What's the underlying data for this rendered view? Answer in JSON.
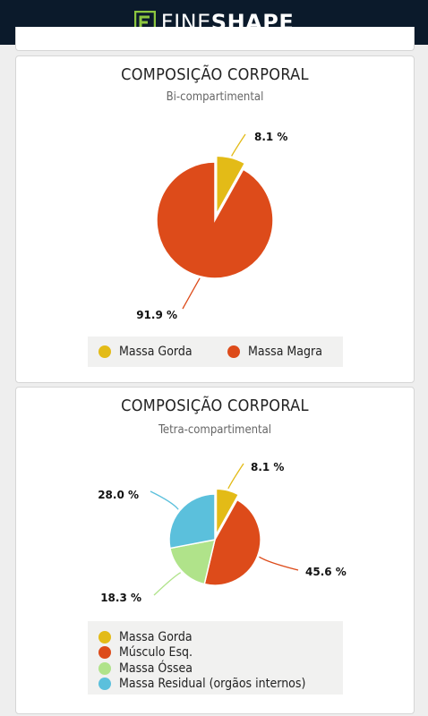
{
  "header": {
    "brand_light": "FINE",
    "brand_bold": "SHAPE",
    "icon": "fineshape-logo-icon"
  },
  "colors": {
    "massa_gorda": "#e3bb17",
    "massa_magra": "#dd4b1a",
    "musculo": "#dd4b1a",
    "ossea": "#b0e38a",
    "residual": "#5bc0dc"
  },
  "chart1": {
    "title": "COMPOSIÇÃO CORPORAL",
    "subtitle": "Bi-compartimental",
    "chart_data": {
      "type": "pie",
      "series": [
        {
          "name": "Massa Gorda",
          "value": 8.1,
          "label": "8.1 %"
        },
        {
          "name": "Massa Magra",
          "value": 91.9,
          "label": "91.9 %"
        }
      ],
      "exploded": "Massa Gorda",
      "legend_position": "bottom"
    },
    "legend": [
      "Massa Gorda",
      "Massa Magra"
    ]
  },
  "chart2": {
    "title": "COMPOSIÇÃO CORPORAL",
    "subtitle": "Tetra-compartimental",
    "chart_data": {
      "type": "pie",
      "series": [
        {
          "name": "Massa Gorda",
          "value": 8.1,
          "label": "8.1 %"
        },
        {
          "name": "Músculo Esq.",
          "value": 45.6,
          "label": "45.6 %"
        },
        {
          "name": "Massa Óssea",
          "value": 18.3,
          "label": "18.3 %"
        },
        {
          "name": "Massa Residual (orgãos internos)",
          "value": 28.0,
          "label": "28.0 %"
        }
      ],
      "exploded": "Massa Gorda",
      "legend_position": "bottom"
    },
    "legend": [
      "Massa Gorda",
      "Músculo Esq.",
      "Massa Óssea",
      "Massa Residual (orgãos internos)"
    ]
  }
}
